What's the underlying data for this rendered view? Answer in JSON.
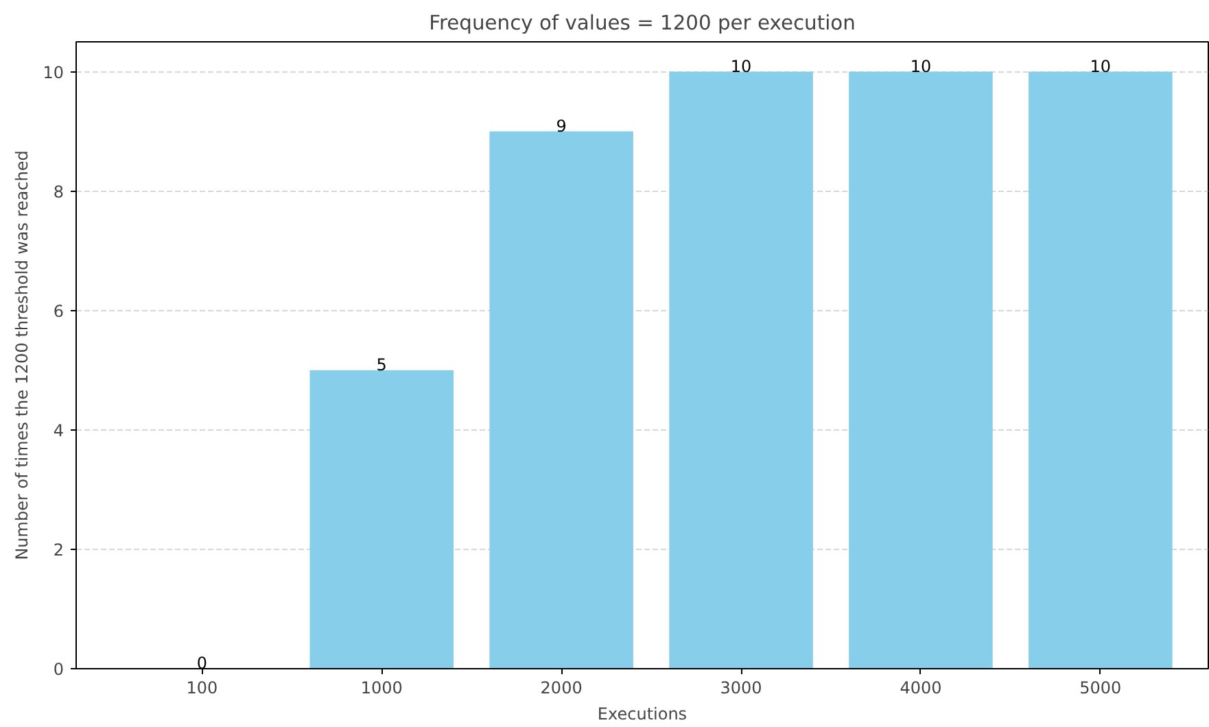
{
  "chart_data": {
    "type": "bar",
    "title": "Frequency of values = 1200 per execution",
    "xlabel": "Executions",
    "ylabel": "Number of times the 1200 threshold was reached",
    "categories": [
      "100",
      "1000",
      "2000",
      "3000",
      "4000",
      "5000"
    ],
    "values": [
      0,
      5,
      9,
      10,
      10,
      10
    ],
    "color": "#87ceeb",
    "ylim": [
      0,
      10.5
    ],
    "yticks": [
      0,
      2,
      4,
      6,
      8,
      10
    ],
    "grid": "y",
    "data_labels": true
  }
}
